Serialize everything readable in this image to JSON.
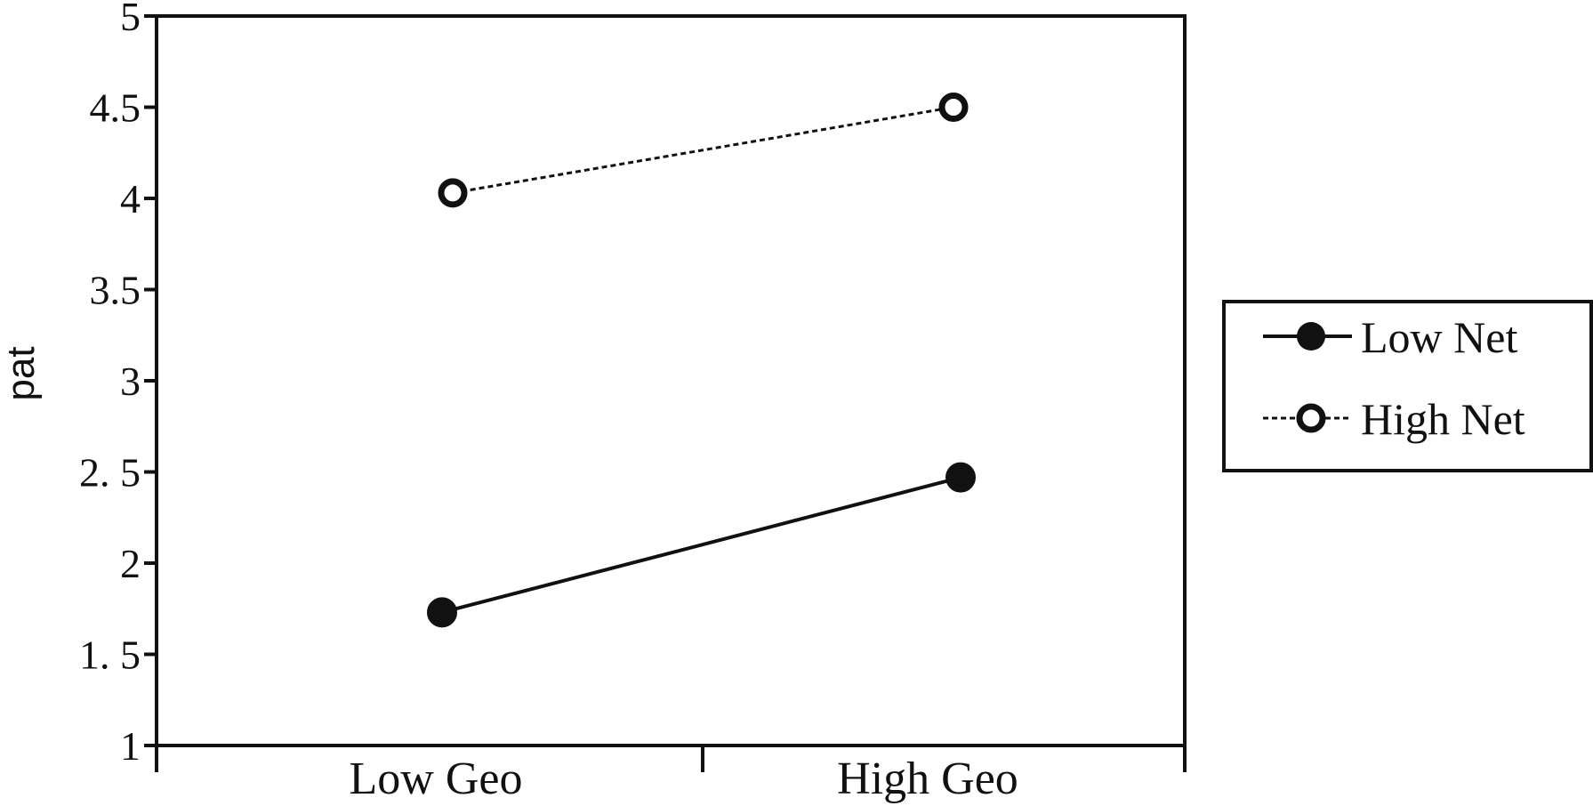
{
  "chart_data": {
    "type": "line",
    "title": "",
    "xlabel": "",
    "ylabel": "pat",
    "categories": [
      "Low Geo",
      "High Geo"
    ],
    "ylim": [
      1,
      5
    ],
    "yticks": [
      {
        "value": 1,
        "label": "1"
      },
      {
        "value": 1.5,
        "label": "1. 5"
      },
      {
        "value": 2,
        "label": "2"
      },
      {
        "value": 2.5,
        "label": "2. 5"
      },
      {
        "value": 3,
        "label": "3"
      },
      {
        "value": 3.5,
        "label": "3.5"
      },
      {
        "value": 4,
        "label": "4"
      },
      {
        "value": 4.5,
        "label": "4.5"
      },
      {
        "value": 5,
        "label": "5"
      }
    ],
    "grid": false,
    "legend": "right",
    "series": [
      {
        "name": "Low Net",
        "values": [
          1.73,
          2.47
        ],
        "marker": "filled-circle",
        "line": "solid",
        "color": "#111111"
      },
      {
        "name": "High Net",
        "values": [
          4.03,
          4.5
        ],
        "marker": "open-circle",
        "line": "dashed",
        "color": "#111111"
      }
    ]
  }
}
